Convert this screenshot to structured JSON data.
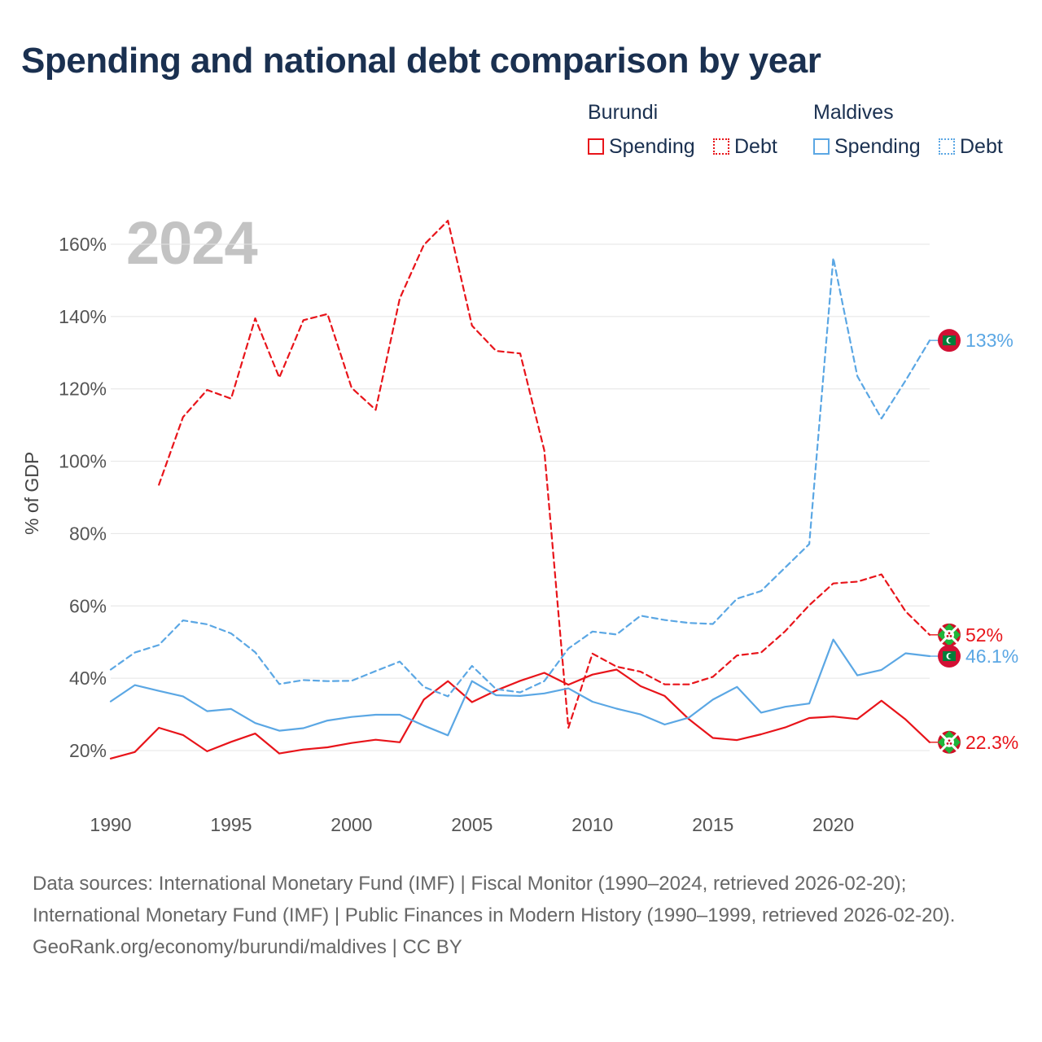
{
  "title": "Spending and national debt comparison by year",
  "year_label": "2024",
  "legend": {
    "groups": [
      {
        "name": "Burundi",
        "color": "#e8141a",
        "spending_label": "Spending",
        "debt_label": "Debt"
      },
      {
        "name": "Maldives",
        "color": "#5ba7e4",
        "spending_label": "Spending",
        "debt_label": "Debt"
      }
    ]
  },
  "footer": {
    "sources": "Data sources: International Monetary Fund (IMF) | Fiscal Monitor (1990–2024, retrieved 2026-02-20); International Monetary Fund (IMF) | Public Finances in Modern History (1990–1999, retrieved 2026-02-20).",
    "credit": "GeoRank.org/economy/burundi/maldives | CC BY"
  },
  "chart_data": {
    "type": "line",
    "title": "Spending and national debt comparison by year",
    "xlabel": "",
    "ylabel": "% of GDP",
    "xlim": [
      1990,
      2024
    ],
    "ylim": [
      10,
      166
    ],
    "x_ticks": [
      1990,
      1995,
      2000,
      2005,
      2010,
      2015,
      2020
    ],
    "y_ticks": [
      20,
      40,
      60,
      80,
      100,
      120,
      140,
      160
    ],
    "y_tick_labels": [
      "20%",
      "40%",
      "60%",
      "80%",
      "100%",
      "120%",
      "140%",
      "160%"
    ],
    "grid": true,
    "legend_position": "top-right",
    "series": [
      {
        "name": "Burundi Spending",
        "country": "Burundi",
        "metric": "Spending",
        "color": "#e8141a",
        "dashed": false,
        "end_label": "22.3%",
        "x": [
          1990,
          1991,
          1992,
          1993,
          1994,
          1995,
          1996,
          1997,
          1998,
          1999,
          2000,
          2001,
          2002,
          2003,
          2004,
          2005,
          2006,
          2007,
          2008,
          2009,
          2010,
          2011,
          2012,
          2013,
          2014,
          2015,
          2016,
          2017,
          2018,
          2019,
          2020,
          2021,
          2022,
          2023,
          2024
        ],
        "values": [
          17.8,
          19.6,
          26.3,
          24.3,
          19.8,
          22.4,
          24.7,
          19.2,
          20.3,
          20.9,
          22.1,
          23.0,
          22.3,
          34.1,
          39.2,
          33.4,
          36.6,
          39.3,
          41.5,
          38.2,
          41.0,
          42.4,
          37.8,
          35.1,
          28.7,
          23.5,
          22.9,
          24.5,
          26.4,
          29.0,
          29.4,
          28.7,
          33.8,
          28.6,
          22.3
        ]
      },
      {
        "name": "Burundi Debt",
        "country": "Burundi",
        "metric": "Debt",
        "color": "#e8141a",
        "dashed": true,
        "end_label": "52%",
        "x": [
          1992,
          1993,
          1994,
          1995,
          1996,
          1997,
          1998,
          1999,
          2000,
          2001,
          2002,
          2003,
          2004,
          2005,
          2006,
          2007,
          2008,
          2009,
          2010,
          2011,
          2012,
          2013,
          2014,
          2015,
          2016,
          2017,
          2018,
          2019,
          2020,
          2021,
          2022,
          2023,
          2024
        ],
        "values": [
          93.5,
          112.2,
          119.7,
          117.3,
          139.5,
          123.1,
          139.0,
          140.7,
          120.3,
          114.2,
          145.0,
          159.8,
          166.5,
          137.5,
          130.5,
          129.8,
          103.0,
          26.3,
          46.8,
          43.2,
          41.8,
          38.3,
          38.3,
          40.4,
          46.3,
          47.1,
          53.0,
          60.2,
          66.2,
          66.7,
          68.7,
          58.5,
          52.0
        ]
      },
      {
        "name": "Maldives Spending",
        "country": "Maldives",
        "metric": "Spending",
        "color": "#5ba7e4",
        "dashed": false,
        "end_label": "46.1%",
        "x": [
          1990,
          1991,
          1992,
          1993,
          1994,
          1995,
          1996,
          1997,
          1998,
          1999,
          2000,
          2001,
          2002,
          2003,
          2004,
          2005,
          2006,
          2007,
          2008,
          2009,
          2010,
          2011,
          2012,
          2013,
          2014,
          2015,
          2016,
          2017,
          2018,
          2019,
          2020,
          2021,
          2022,
          2023,
          2024
        ],
        "values": [
          33.6,
          38.1,
          36.5,
          35.0,
          30.9,
          31.5,
          27.6,
          25.5,
          26.2,
          28.3,
          29.3,
          29.9,
          29.9,
          26.9,
          24.2,
          39.2,
          35.3,
          35.1,
          35.8,
          37.2,
          33.5,
          31.6,
          30.0,
          27.2,
          29.1,
          34.1,
          37.6,
          30.5,
          32.1,
          33.0,
          50.7,
          40.8,
          42.3,
          46.9,
          46.1
        ]
      },
      {
        "name": "Maldives Debt",
        "country": "Maldives",
        "metric": "Debt",
        "color": "#5ba7e4",
        "dashed": true,
        "end_label": "133%",
        "x": [
          1990,
          1991,
          1992,
          1993,
          1994,
          1995,
          1996,
          1997,
          1998,
          1999,
          2000,
          2001,
          2002,
          2003,
          2004,
          2005,
          2006,
          2007,
          2008,
          2009,
          2010,
          2011,
          2012,
          2013,
          2014,
          2015,
          2016,
          2017,
          2018,
          2019,
          2020,
          2021,
          2022,
          2023,
          2024
        ],
        "values": [
          42.4,
          47.1,
          49.2,
          56.0,
          54.9,
          52.4,
          47.2,
          38.4,
          39.5,
          39.2,
          39.3,
          42.0,
          44.6,
          37.6,
          35.0,
          43.4,
          37.0,
          36.1,
          39.2,
          48.2,
          52.9,
          52.1,
          57.3,
          56.1,
          55.3,
          55.0,
          62.0,
          64.1,
          70.6,
          77.1,
          156.2,
          123.5,
          111.8,
          122.3,
          133.4
        ]
      }
    ]
  }
}
